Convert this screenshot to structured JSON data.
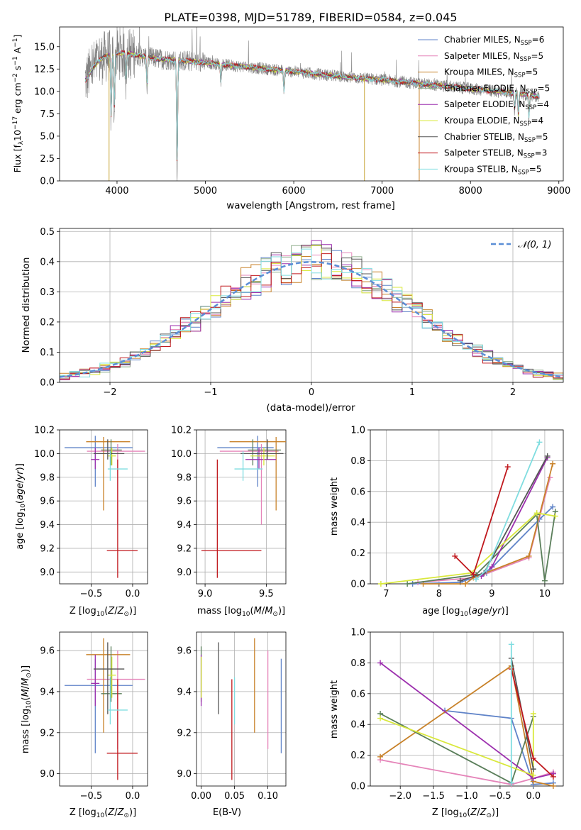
{
  "chart_data": [
    {
      "type": "line",
      "title": "PLATE=0398, MJD=51789, FIBERID=0584, z=0.045",
      "xlabel": "wavelength [Angstrom, rest frame]",
      "ylabel": "Flux [fλ10⁻¹⁷ erg cm⁻² s⁻¹ A⁻¹]",
      "xlim": [
        3350,
        9050
      ],
      "ylim": [
        0,
        17.2
      ],
      "xticks": [
        4000,
        5000,
        6000,
        7000,
        8000,
        9000
      ],
      "yticks": [
        0.0,
        2.5,
        5.0,
        7.5,
        10.0,
        12.5,
        15.0
      ],
      "grid": false,
      "legend_position": "top-right",
      "data_spectrum": {
        "name": "data",
        "color": "#808080",
        "x_range": [
          3640,
          8780
        ]
      },
      "series": [
        {
          "name": "Chabrier MILES, N",
          "sub": "SSP",
          "suffix": "=6",
          "color": "#5f83c8"
        },
        {
          "name": "Salpeter MILES, N",
          "sub": "SSP",
          "suffix": "=5",
          "color": "#e584b9"
        },
        {
          "name": "Kroupa MILES, N",
          "sub": "SSP",
          "suffix": "=5",
          "color": "#c8822a"
        },
        {
          "name": "Chabrier ELODIE, N",
          "sub": "SSP",
          "suffix": "=5",
          "color": "#8fae8c"
        },
        {
          "name": "Salpeter ELODIE, N",
          "sub": "SSP",
          "suffix": "=4",
          "color": "#9c2fae"
        },
        {
          "name": "Kroupa ELODIE, N",
          "sub": "SSP",
          "suffix": "=4",
          "color": "#d9e83c"
        },
        {
          "name": "Chabrier STELIB, N",
          "sub": "SSP",
          "suffix": "=5",
          "color": "#555555"
        },
        {
          "name": "Salpeter STELIB, N",
          "sub": "SSP",
          "suffix": "=3",
          "color": "#c0181d"
        },
        {
          "name": "Kroupa STELIB, N",
          "sub": "SSP",
          "suffix": "=5",
          "color": "#7fdde0"
        }
      ],
      "continuum": {
        "x": [
          3640,
          3750,
          3850,
          3950,
          4100,
          4300,
          4500,
          4800,
          5000,
          5300,
          5600,
          6000,
          6300,
          6600,
          7000,
          7400,
          7800,
          8200,
          8600,
          8780
        ],
        "y": [
          11.2,
          13.0,
          13.8,
          14.2,
          14.3,
          13.9,
          13.6,
          13.4,
          13.2,
          12.9,
          12.6,
          12.2,
          11.9,
          11.6,
          11.3,
          10.9,
          10.5,
          10.1,
          9.7,
          9.4
        ]
      },
      "absorption_lines": [
        {
          "x": 3934,
          "depth": 7.5
        },
        {
          "x": 3969,
          "depth": 6.5
        },
        {
          "x": 4102,
          "depth": 3.0
        },
        {
          "x": 4340,
          "depth": 3.5
        },
        {
          "x": 4680,
          "depth": 13.0
        },
        {
          "x": 5175,
          "depth": 2.0
        },
        {
          "x": 5890,
          "depth": 2.5
        },
        {
          "x": 8500,
          "depth": 2.0
        },
        {
          "x": 8542,
          "depth": 2.5
        },
        {
          "x": 8662,
          "depth": 2.5
        }
      ],
      "dropouts": [
        {
          "x": 3910,
          "color": "#c8a63a"
        },
        {
          "x": 6800,
          "color": "#c8a63a"
        },
        {
          "x": 7420,
          "color": "#c8822a"
        }
      ]
    },
    {
      "type": "histogram",
      "xlabel": "(data-model)/error",
      "ylabel": "Normed distribution",
      "xlim": [
        -2.5,
        2.5
      ],
      "ylim": [
        0,
        0.51
      ],
      "xticks": [
        -2,
        -1,
        0,
        1,
        2
      ],
      "yticks": [
        0.0,
        0.1,
        0.2,
        0.3,
        0.4,
        0.5
      ],
      "grid": true,
      "bin_width": 0.1,
      "legend_position": "top-right",
      "reference": {
        "label": "𝒩(0, 1)",
        "type": "normal",
        "mean": 0,
        "sd": 1,
        "color": "#5b8ed6"
      }
    },
    {
      "type": "errorbar",
      "xlabel": "Z [log₁₀(Z/Z⊙)]",
      "ylabel": "age  [log₁₀(age/yr)]",
      "xlim": [
        -0.88,
        0.18
      ],
      "ylim": [
        8.9,
        10.2
      ],
      "xticks": [
        -0.5,
        0.0
      ],
      "yticks": [
        9.0,
        9.2,
        9.4,
        9.6,
        9.8,
        10.0,
        10.2
      ],
      "grid": true
    },
    {
      "type": "errorbar",
      "xlabel": "mass [log₁₀(M/M⊙)]",
      "ylabel": "",
      "xlim": [
        8.93,
        9.66
      ],
      "ylim": [
        8.9,
        10.2
      ],
      "xticks": [
        9.0,
        9.5
      ],
      "yticks": [
        9.0,
        9.2,
        9.4,
        9.6,
        9.8,
        10.0,
        10.2
      ],
      "grid": true
    },
    {
      "type": "line",
      "xlabel": "age  [log₁₀(age/yr)]",
      "ylabel": "mass weight",
      "xlim": [
        6.7,
        10.35
      ],
      "ylim": [
        0,
        1.0
      ],
      "xticks": [
        7,
        8,
        9,
        10
      ],
      "yticks": [
        0.0,
        0.2,
        0.4,
        0.6,
        0.8,
        1.0
      ],
      "grid": true,
      "series": [
        {
          "color": "#5f83c8",
          "x": [
            7.5,
            8.4,
            8.9,
            9.9,
            10.15
          ],
          "y": [
            0.0,
            0.01,
            0.07,
            0.42,
            0.5
          ]
        },
        {
          "color": "#e584b9",
          "x": [
            7.6,
            8.7,
            9.7,
            10.1
          ],
          "y": [
            0.01,
            0.04,
            0.17,
            0.69
          ]
        },
        {
          "color": "#c8822a",
          "x": [
            7.7,
            8.5,
            8.65,
            9.7,
            10.15
          ],
          "y": [
            0.0,
            0.0,
            0.04,
            0.18,
            0.78
          ]
        },
        {
          "color": "#5a7e5a",
          "x": [
            7.4,
            8.7,
            9.85,
            10.0,
            10.2
          ],
          "y": [
            0.0,
            0.06,
            0.45,
            0.02,
            0.47
          ]
        },
        {
          "color": "#9c2fae",
          "x": [
            8.8,
            9.0,
            10.05
          ],
          "y": [
            0.05,
            0.11,
            0.82
          ]
        },
        {
          "color": "#d9e83c",
          "x": [
            6.9,
            8.6,
            9.85,
            10.2
          ],
          "y": [
            0.0,
            0.07,
            0.46,
            0.44
          ]
        },
        {
          "color": "#555555",
          "x": [
            8.4,
            8.85,
            10.05
          ],
          "y": [
            0.02,
            0.07,
            0.83
          ]
        },
        {
          "color": "#c0181d",
          "x": [
            8.3,
            8.65,
            9.3
          ],
          "y": [
            0.18,
            0.06,
            0.76
          ]
        },
        {
          "color": "#7fdde0",
          "x": [
            8.7,
            8.9,
            9.9
          ],
          "y": [
            0.03,
            0.09,
            0.92
          ]
        }
      ]
    },
    {
      "type": "errorbar",
      "xlabel": "Z [log₁₀(Z/Z⊙)]",
      "ylabel": "mass [log₁₀(M/M⊙)]",
      "xlim": [
        -0.88,
        0.18
      ],
      "ylim": [
        8.94,
        9.69
      ],
      "xticks": [
        -0.5,
        0.0
      ],
      "yticks": [
        9.0,
        9.2,
        9.4,
        9.6
      ],
      "grid": true
    },
    {
      "type": "errorbar",
      "xlabel": "E(B-V)",
      "ylabel": "",
      "xlim": [
        -0.007,
        0.127
      ],
      "ylim": [
        8.94,
        9.69
      ],
      "xticks": [
        0.0,
        0.05,
        0.1
      ],
      "yticks": [
        9.0,
        9.2,
        9.4,
        9.6
      ],
      "grid": true
    },
    {
      "type": "line",
      "xlabel": "Z [log₁₀(Z/Z⊙)]",
      "ylabel": "mass weight",
      "xlim": [
        -2.45,
        0.45
      ],
      "ylim": [
        0,
        1.0
      ],
      "xticks": [
        -2.0,
        -1.5,
        -1.0,
        -0.5,
        0.0
      ],
      "yticks": [
        0.0,
        0.2,
        0.4,
        0.6,
        0.8,
        1.0
      ],
      "grid": true,
      "series": [
        {
          "color": "#5f83c8",
          "x": [
            -1.33,
            -0.33,
            0.0,
            0.3
          ],
          "y": [
            0.49,
            0.44,
            0.01,
            0.02
          ]
        },
        {
          "color": "#e584b9",
          "x": [
            -2.3,
            -0.33,
            0.0,
            0.3
          ],
          "y": [
            0.17,
            0.01,
            0.05,
            0.09
          ]
        },
        {
          "color": "#c8822a",
          "x": [
            -2.3,
            -0.33,
            0.0,
            0.3
          ],
          "y": [
            0.19,
            0.78,
            0.03,
            0.0
          ]
        },
        {
          "color": "#5a7e5a",
          "x": [
            -2.3,
            -0.33,
            0.0
          ],
          "y": [
            0.47,
            0.02,
            0.45
          ]
        },
        {
          "color": "#9c2fae",
          "x": [
            -2.3,
            0.0,
            0.3
          ],
          "y": [
            0.8,
            0.05,
            0.08
          ]
        },
        {
          "color": "#d9e83c",
          "x": [
            -2.3,
            0.0,
            0.0
          ],
          "y": [
            0.44,
            0.07,
            0.47
          ]
        },
        {
          "color": "#555555",
          "x": [
            -0.33,
            0.0
          ],
          "y": [
            0.83,
            0.11
          ]
        },
        {
          "color": "#c0181d",
          "x": [
            -0.33,
            0.0,
            0.3
          ],
          "y": [
            0.76,
            0.18,
            0.06
          ]
        },
        {
          "color": "#7fdde0",
          "x": [
            -0.33,
            -0.33
          ],
          "y": [
            0.92,
            0.02
          ]
        }
      ]
    }
  ],
  "errorbar_points": [
    {
      "color": "#5f83c8",
      "Z": -0.45,
      "Z_lo": -0.82,
      "Z_hi": 0.0,
      "age": 10.05,
      "age_lo": 9.72,
      "age_hi": 10.15,
      "mass": 9.43,
      "mass_lo": 9.1,
      "mass_hi": 9.56,
      "ebv": 0.12,
      "ebv_lo": 0.0,
      "ebv_hi": 0.0
    },
    {
      "color": "#e584b9",
      "Z": -0.18,
      "Z_lo": -0.55,
      "Z_hi": 0.15,
      "age": 10.02,
      "age_lo": 9.4,
      "age_hi": 10.08,
      "mass": 9.46,
      "mass_lo": 9.12,
      "mass_hi": 9.6,
      "ebv": 0.1,
      "ebv_lo": 0.0,
      "ebv_hi": 0.0
    },
    {
      "color": "#c8822a",
      "Z": -0.35,
      "Z_lo": -0.56,
      "Z_hi": -0.03,
      "age": 10.1,
      "age_lo": 9.52,
      "age_hi": 10.14,
      "mass": 9.58,
      "mass_lo": 9.2,
      "mass_hi": 9.66,
      "ebv": 0.08,
      "ebv_lo": 0.0,
      "ebv_hi": 0.0
    },
    {
      "color": "#5a7e5a",
      "Z": -0.26,
      "Z_lo": -0.38,
      "Z_hi": -0.13,
      "age": 10.03,
      "age_lo": 9.9,
      "age_hi": 10.12,
      "mass": 9.39,
      "mass_lo": 9.35,
      "mass_hi": 9.62,
      "ebv": 0.0,
      "ebv_lo": 0.0,
      "ebv_hi": 0.0
    },
    {
      "color": "#9c2fae",
      "Z": -0.45,
      "Z_lo": -0.5,
      "Z_hi": -0.4,
      "age": 9.95,
      "age_lo": 9.87,
      "age_hi": 10.05,
      "mass": 9.44,
      "mass_lo": 9.33,
      "mass_hi": 9.58,
      "ebv": 0.0,
      "ebv_lo": 0.0,
      "ebv_hi": 0.0
    },
    {
      "color": "#d9e83c",
      "Z": -0.25,
      "Z_lo": -0.3,
      "Z_hi": -0.2,
      "age": 9.98,
      "age_lo": 9.9,
      "age_hi": 10.05,
      "mass": 9.48,
      "mass_lo": 9.37,
      "mass_hi": 9.57,
      "ebv": 0.0,
      "ebv_lo": 0.0,
      "ebv_hi": 0.0
    },
    {
      "color": "#555555",
      "Z": -0.3,
      "Z_lo": -0.47,
      "Z_hi": -0.1,
      "age": 10.0,
      "age_lo": 9.95,
      "age_hi": 10.12,
      "mass": 9.51,
      "mass_lo": 9.29,
      "mass_hi": 9.64,
      "ebv": 0.026,
      "ebv_lo": 0.0,
      "ebv_hi": 0.0
    },
    {
      "color": "#c0181d",
      "Z": -0.18,
      "Z_lo": -0.31,
      "Z_hi": 0.06,
      "age": 9.18,
      "age_lo": 8.95,
      "age_hi": 9.95,
      "mass": 9.1,
      "mass_lo": 8.97,
      "mass_hi": 9.46,
      "ebv": 0.046,
      "ebv_lo": 0.0,
      "ebv_hi": 0.0
    },
    {
      "color": "#7fdde0",
      "Z": -0.27,
      "Z_lo": -0.3,
      "Z_hi": -0.06,
      "age": 9.87,
      "age_lo": 9.77,
      "age_hi": 10.02,
      "mass": 9.31,
      "mass_lo": 9.24,
      "mass_hi": 9.47,
      "ebv": 0.05,
      "ebv_lo": 0.0,
      "ebv_hi": 0.0
    }
  ]
}
